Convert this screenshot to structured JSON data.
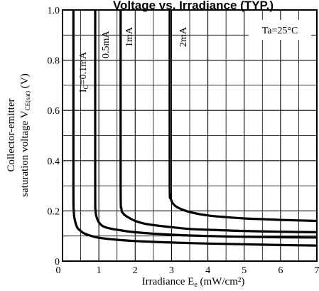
{
  "chart_data": {
    "type": "line",
    "title": "Voltage vs. Irradiance (TYP.)",
    "xlabel": "Irradiance E",
    "xlabel_sub": "e",
    "xlabel_unit": " (mW/cm²)",
    "ylabel_line1": "Collector-emitter",
    "ylabel_line2": "saturation voltage V",
    "ylabel_sub": "CE(sat)",
    "ylabel_unit": " (V)",
    "annotation": "Ta=25°C",
    "xlim": [
      0,
      7
    ],
    "ylim": [
      0,
      1.0
    ],
    "xticks": [
      0,
      1,
      2,
      3,
      4,
      5,
      6,
      7
    ],
    "xtick_labels": [
      "0",
      "1",
      "2",
      "3",
      "4",
      "5",
      "6",
      "7"
    ],
    "yticks": [
      0,
      0.2,
      0.4,
      0.6,
      0.8,
      1.0
    ],
    "ytick_labels": [
      "0",
      "0.2",
      "0.4",
      "0.6",
      "0.8",
      "1.0"
    ],
    "grid": true,
    "series": [
      {
        "name": "Ic=0.1mA",
        "label_main": "I",
        "label_sub": "C",
        "label_rest": "=0.1mA",
        "x": [
          0.3,
          0.3,
          0.31,
          0.33,
          0.4,
          0.5,
          0.6,
          0.8,
          1.0,
          1.5,
          2.0,
          3.0,
          4.0,
          5.0,
          6.0,
          7.0
        ],
        "y": [
          1.0,
          0.3,
          0.2,
          0.17,
          0.135,
          0.12,
          0.11,
          0.1,
          0.093,
          0.085,
          0.08,
          0.074,
          0.07,
          0.067,
          0.064,
          0.062
        ]
      },
      {
        "name": "0.5mA",
        "label_main": "0.5mA",
        "x": [
          0.9,
          0.9,
          0.91,
          0.95,
          1.0,
          1.1,
          1.3,
          1.5,
          2.0,
          3.0,
          4.0,
          5.0,
          6.0,
          7.0
        ],
        "y": [
          1.0,
          0.3,
          0.2,
          0.17,
          0.155,
          0.14,
          0.13,
          0.125,
          0.115,
          0.105,
          0.1,
          0.097,
          0.095,
          0.094
        ]
      },
      {
        "name": "1mA",
        "label_main": "1mA",
        "x": [
          1.6,
          1.6,
          1.62,
          1.67,
          1.8,
          2.0,
          2.3,
          2.7,
          3.0,
          3.5,
          4.0,
          5.0,
          6.0,
          7.0
        ],
        "y": [
          1.0,
          0.3,
          0.21,
          0.19,
          0.175,
          0.16,
          0.148,
          0.14,
          0.135,
          0.128,
          0.125,
          0.12,
          0.117,
          0.115
        ]
      },
      {
        "name": "2mA",
        "label_main": "2mA",
        "x": [
          2.95,
          2.95,
          2.97,
          3.0,
          3.1,
          3.3,
          3.6,
          4.0,
          4.5,
          5.0,
          5.5,
          6.0,
          6.5,
          7.0
        ],
        "y": [
          1.0,
          0.32,
          0.265,
          0.24,
          0.22,
          0.205,
          0.192,
          0.182,
          0.175,
          0.17,
          0.167,
          0.164,
          0.162,
          0.16
        ]
      }
    ]
  }
}
